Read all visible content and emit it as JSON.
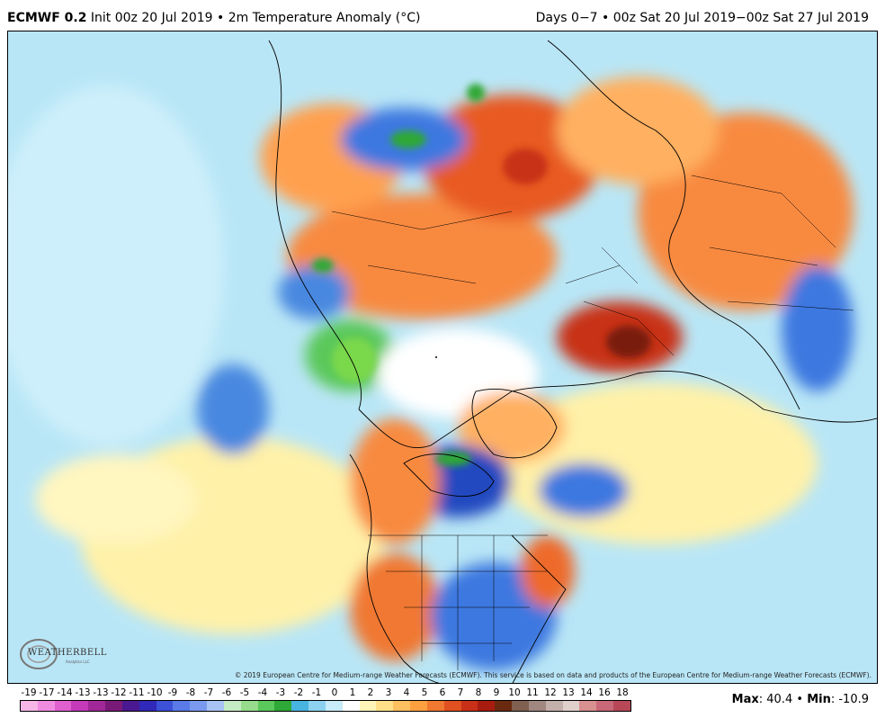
{
  "header": {
    "model": "ECMWF 0.2",
    "init_text": "Init 00z 20 Jul 2019",
    "separator": "•",
    "field": "2m Temperature Anomaly (°C)",
    "period": "Days 0−7 • 00z Sat 20 Jul 2019−00z Sat 27 Jul 2019"
  },
  "copyright": "© 2019 European Centre for Medium-range Weather Forecasts (ECMWF). This service is based on data and products of the European Centre for Medium-range Weather Forecasts (ECMWF).",
  "logo": {
    "text": "WEATHERBELL",
    "sub": "Analytics LLC"
  },
  "legend": {
    "labels": [
      "-19",
      "-17",
      "-14",
      "-13",
      "-13",
      "-12",
      "-11",
      "-10",
      "-9",
      "-8",
      "-7",
      "-6",
      "-5",
      "-4",
      "-3",
      "-2",
      "-1",
      "0",
      "1",
      "2",
      "3",
      "4",
      "5",
      "6",
      "7",
      "8",
      "9",
      "10",
      "11",
      "12",
      "13",
      "14",
      "16",
      "18"
    ],
    "colors": [
      "#f7b5e8",
      "#f08ce0",
      "#e060d0",
      "#c43ab8",
      "#a02898",
      "#7a1a78",
      "#4a1890",
      "#3028b8",
      "#3c50d8",
      "#5a7ae8",
      "#7a9af0",
      "#a8c4f4",
      "#c4ecc4",
      "#96dc8c",
      "#5ac85a",
      "#2ea836",
      "#48b4e0",
      "#8cd2f0",
      "#c8ecf8",
      "#ffffff",
      "#fff5b8",
      "#ffe088",
      "#ffc060",
      "#ffa040",
      "#f07830",
      "#e05020",
      "#c83018",
      "#a81c10",
      "#6a2a10",
      "#806050",
      "#a08880",
      "#c4b0aa",
      "#e0d0cc",
      "#d89090",
      "#c86878",
      "#b84858"
    ]
  },
  "maxmin": {
    "max_label": "Max",
    "max_value": "40.4",
    "sep": "•",
    "min_label": "Min",
    "min_value": "-10.9"
  },
  "colors": {
    "ocean_neutral": "#b9e6f6",
    "warm_light": "#fff1a8",
    "warm_mid": "#ffb060",
    "warm_strong": "#ee6a2a",
    "warm_extreme": "#b82a10",
    "cool_light": "#8cc8f0",
    "cool_mid": "#3c78e0",
    "cool_strong": "#2248c0",
    "green": "#2ea836",
    "ice": "#ffffff",
    "grey": "#e6e6e6"
  }
}
